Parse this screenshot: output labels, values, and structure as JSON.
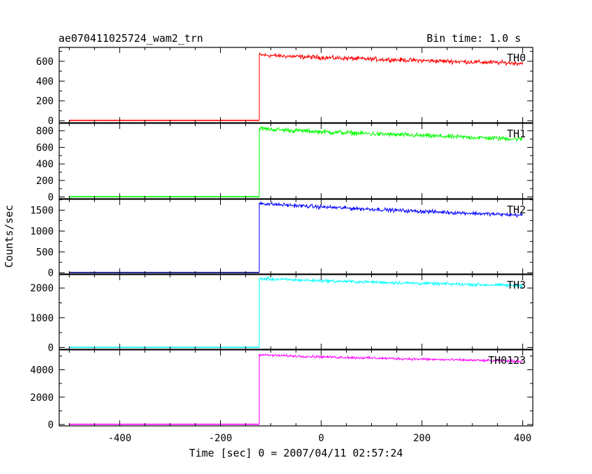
{
  "chart_data": {
    "type": "line",
    "title_left": "ae070411025724_wam2_trn",
    "title_right": "Bin time: 1.0 s",
    "xlabel": "Time [sec] 0 = 2007/04/11 02:57:24",
    "ylabel": "Counts/sec",
    "xlim": [
      -520,
      420
    ],
    "xticks": [
      -400,
      -200,
      0,
      200,
      400
    ],
    "x_start": -500,
    "x_end": 400,
    "trigger_time": -123,
    "panels": [
      {
        "name": "TH0",
        "color": "#ff0000",
        "ylim": [
          -20,
          740
        ],
        "yticks": [
          0,
          200,
          400,
          600
        ],
        "baseline": 3,
        "peak": 665,
        "end_level": 580,
        "noise": 22
      },
      {
        "name": "TH1",
        "color": "#00ff00",
        "ylim": [
          -20,
          890
        ],
        "yticks": [
          0,
          200,
          400,
          600,
          800
        ],
        "baseline": 4,
        "peak": 830,
        "end_level": 700,
        "noise": 28
      },
      {
        "name": "TH2",
        "color": "#0000ff",
        "baseline_color": "#000080",
        "ylim": [
          -30,
          1760
        ],
        "yticks": [
          0,
          500,
          1000,
          1500
        ],
        "baseline": 5,
        "peak": 1670,
        "end_level": 1380,
        "noise": 45
      },
      {
        "name": "TH3",
        "color": "#00ffff",
        "ylim": [
          -60,
          2450
        ],
        "yticks": [
          0,
          1000,
          2000
        ],
        "baseline": 6,
        "peak": 2320,
        "end_level": 2080,
        "noise": 55
      },
      {
        "name": "TH0123",
        "color": "#ff00ff",
        "ylim": [
          -100,
          5450
        ],
        "yticks": [
          0,
          2000,
          4000
        ],
        "baseline": 18,
        "peak": 5100,
        "end_level": 4620,
        "noise": 90
      }
    ]
  }
}
